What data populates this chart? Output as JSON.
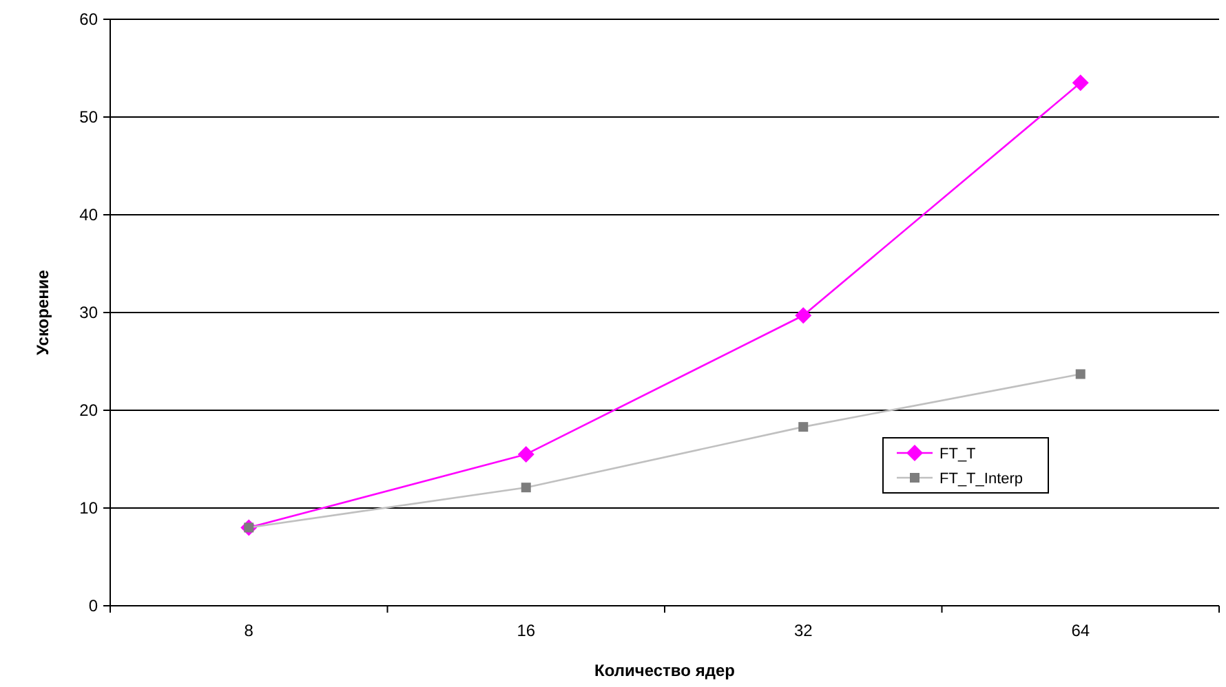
{
  "chart_data": {
    "type": "line",
    "xlabel": "Количество ядер",
    "ylabel": "Ускорение",
    "categories": [
      "8",
      "16",
      "32",
      "64"
    ],
    "series": [
      {
        "name": "FT_T",
        "color": "#ff00ff",
        "marker": "diamond",
        "values": [
          8,
          15.5,
          29.7,
          53.5
        ]
      },
      {
        "name": "FT_T_Interp",
        "color": "#c0c0c0",
        "marker": "square",
        "values": [
          8,
          12.1,
          18.3,
          23.7
        ]
      }
    ],
    "ylim": [
      0,
      60
    ],
    "yticks": [
      0,
      10,
      20,
      30,
      40,
      50,
      60
    ],
    "grid": "y",
    "legend": "right",
    "line_style": "solid"
  }
}
